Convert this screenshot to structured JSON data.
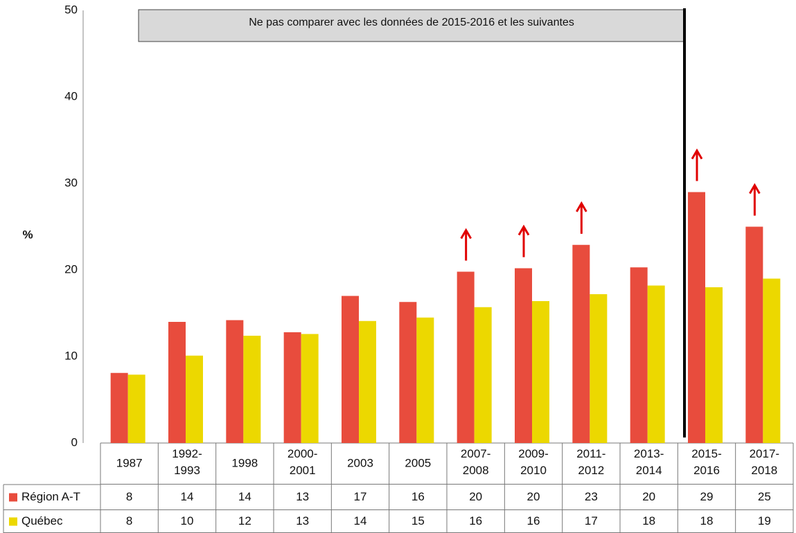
{
  "chart_data": {
    "type": "bar",
    "y_label": "%",
    "annotation": "Ne pas comparer avec les données de 2015-2016 et les suivantes",
    "categories": [
      "1987",
      "1992-1993",
      "1998",
      "2000-2001",
      "2003",
      "2005",
      "2007-2008",
      "2009-2010",
      "2011-2012",
      "2013-2014",
      "2015-2016",
      "2017-2018"
    ],
    "series": [
      {
        "name": "Région A-T",
        "color": "#e84c3d",
        "values": [
          8.1,
          14,
          14.2,
          12.8,
          17,
          16.3,
          19.8,
          20.2,
          22.9,
          20.3,
          29,
          25
        ],
        "value_labels": [
          "8",
          "14",
          "14",
          "13",
          "17",
          "16",
          "20",
          "20",
          "23",
          "20",
          "29",
          "25"
        ]
      },
      {
        "name": "Québec",
        "color": "#ecd800",
        "values": [
          7.9,
          10.1,
          12.4,
          12.6,
          14.1,
          14.5,
          15.7,
          16.4,
          17.2,
          18.2,
          18,
          19
        ],
        "value_labels": [
          "8",
          "10",
          "12",
          "13",
          "14",
          "15",
          "16",
          "16",
          "17",
          "18",
          "18",
          "19"
        ]
      }
    ],
    "significant_increase": [
      false,
      false,
      false,
      false,
      false,
      false,
      true,
      true,
      true,
      false,
      true,
      true
    ],
    "arrow_color": "#e00000",
    "ylim": [
      0,
      50
    ],
    "yticks": [
      0,
      10,
      20,
      30,
      40,
      50
    ],
    "grid": false
  }
}
